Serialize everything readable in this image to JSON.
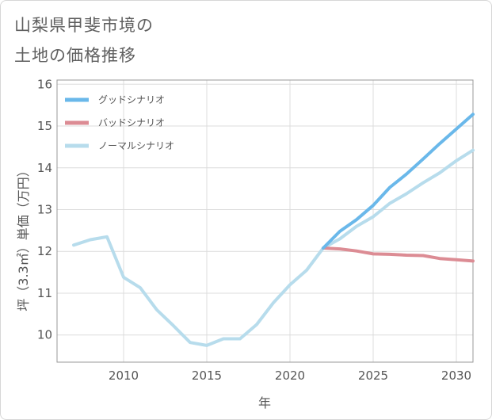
{
  "title_line1": "山梨県甲斐市境の",
  "title_line2": "土地の価格推移",
  "chart_data": {
    "type": "line",
    "xlabel": "年",
    "ylabel": "坪（3.3㎡）単価（万円）",
    "xlim": [
      2006,
      2031
    ],
    "ylim": [
      9.35,
      16.1
    ],
    "xticks": [
      2010,
      2015,
      2020,
      2025,
      2030
    ],
    "yticks": [
      10,
      11,
      12,
      13,
      14,
      15,
      16
    ],
    "grid": true,
    "legend_position": "top-left",
    "series": [
      {
        "name": "グッドシナリオ",
        "color": "#6ab8ea",
        "x": [
          2022,
          2023,
          2024,
          2025,
          2026,
          2027,
          2028,
          2029,
          2030,
          2031
        ],
        "y": [
          12.08,
          12.48,
          12.76,
          13.1,
          13.53,
          13.85,
          14.21,
          14.58,
          14.93,
          15.28
        ]
      },
      {
        "name": "バッドシナリオ",
        "color": "#dc8c94",
        "x": [
          2022,
          2023,
          2024,
          2025,
          2026,
          2027,
          2028,
          2029,
          2030,
          2031
        ],
        "y": [
          12.08,
          12.06,
          12.01,
          11.94,
          11.93,
          11.91,
          11.9,
          11.83,
          11.8,
          11.77
        ]
      },
      {
        "name": "ノーマルシナリオ",
        "color": "#b7dcec",
        "x": [
          2007,
          2008,
          2009,
          2010,
          2011,
          2012,
          2013,
          2014,
          2015,
          2016,
          2017,
          2018,
          2019,
          2020,
          2021,
          2022,
          2023,
          2024,
          2025,
          2026,
          2027,
          2028,
          2029,
          2030,
          2031
        ],
        "y": [
          12.15,
          12.28,
          12.35,
          11.38,
          11.13,
          10.6,
          10.22,
          9.82,
          9.75,
          9.91,
          9.91,
          10.25,
          10.77,
          11.2,
          11.55,
          12.08,
          12.3,
          12.6,
          12.83,
          13.15,
          13.38,
          13.64,
          13.88,
          14.17,
          14.42
        ]
      }
    ]
  }
}
